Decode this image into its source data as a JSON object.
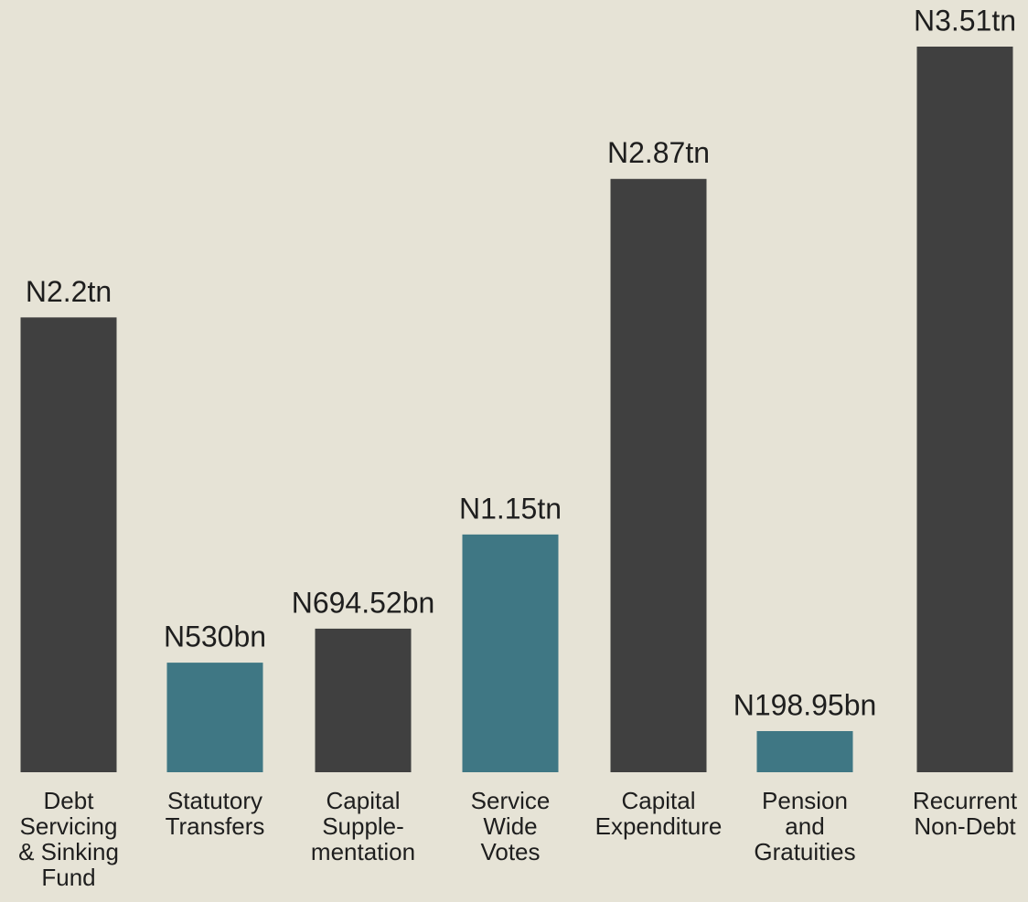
{
  "chart_data": {
    "type": "bar",
    "categories": [
      [
        "Debt",
        "Servicing",
        "& Sinking",
        "Fund"
      ],
      [
        "Statutory",
        "Transfers"
      ],
      [
        "Capital",
        "Supple-",
        "mentation"
      ],
      [
        "Service",
        "Wide",
        "Votes"
      ],
      [
        "Capital",
        "Expenditure"
      ],
      [
        "Pension",
        "and",
        "Gratuities"
      ],
      [
        "Recurrent",
        "Non-Debt"
      ]
    ],
    "values": [
      2200,
      530,
      694.52,
      1150,
      2870,
      198.95,
      3510
    ],
    "value_labels": [
      "N2.2tn",
      "N530bn",
      "N694.52bn",
      "N1.15tn",
      "N2.87tn",
      "N198.95bn",
      "N3.51tn"
    ],
    "colors": [
      "#404040",
      "#3f7784",
      "#404040",
      "#3f7784",
      "#404040",
      "#3f7784",
      "#404040"
    ]
  }
}
